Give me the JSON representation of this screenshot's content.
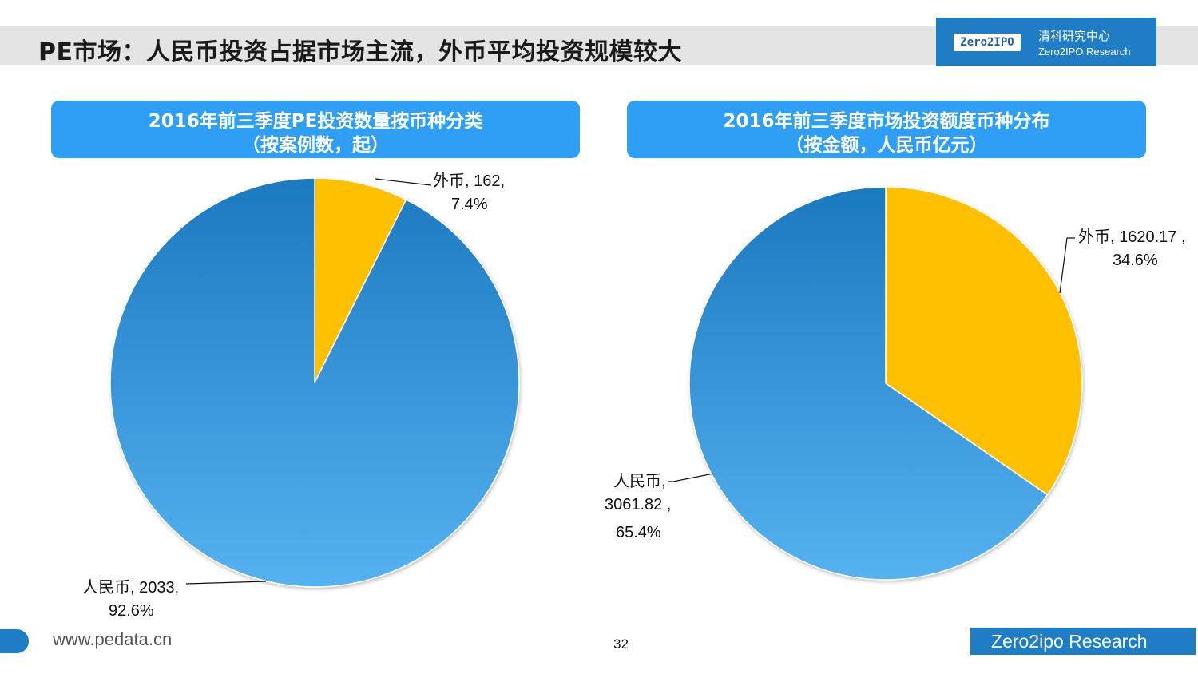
{
  "page": {
    "title": "PE市场：人民币投资占据市场主流，外币平均投资规模较大",
    "logo": {
      "badge": "Zero2IPO",
      "cn": "清科研究中心",
      "en": "Zero2IPO Research"
    },
    "footer": {
      "url": "www.pedata.cn",
      "page_number": "32",
      "brand": "Zero2ipo Research"
    }
  },
  "colors": {
    "rmb_dark": "#1c79c0",
    "rmb_light": "#55b2f0",
    "foreign": "#ffc000",
    "header": "#2f9ff5",
    "brand": "#1f7dc6"
  },
  "chart_data": [
    {
      "type": "pie",
      "title": "2016年前三季度PE投资数量按币种分类",
      "subtitle": "（按案例数，起）",
      "slices": [
        {
          "name": "外币",
          "value": 162,
          "percent": 7.4,
          "label_line1": "外币, 162,",
          "label_line2": "7.4%"
        },
        {
          "name": "人民币",
          "value": 2033,
          "percent": 92.6,
          "label_line1": "人民币, 2033,",
          "label_line2": "92.6%"
        }
      ]
    },
    {
      "type": "pie",
      "title": "2016年前三季度市场投资额度币种分布",
      "subtitle": "（按金额，人民币亿元）",
      "slices": [
        {
          "name": "外币",
          "value": 1620.17,
          "percent": 34.6,
          "label_line1": "外币, 1620.17 ,",
          "label_line2": "34.6%"
        },
        {
          "name": "人民币",
          "value": 3061.82,
          "percent": 65.4,
          "label_line1": "人民币,",
          "label_line2": "3061.82 ,",
          "label_line3": "65.4%"
        }
      ]
    }
  ]
}
